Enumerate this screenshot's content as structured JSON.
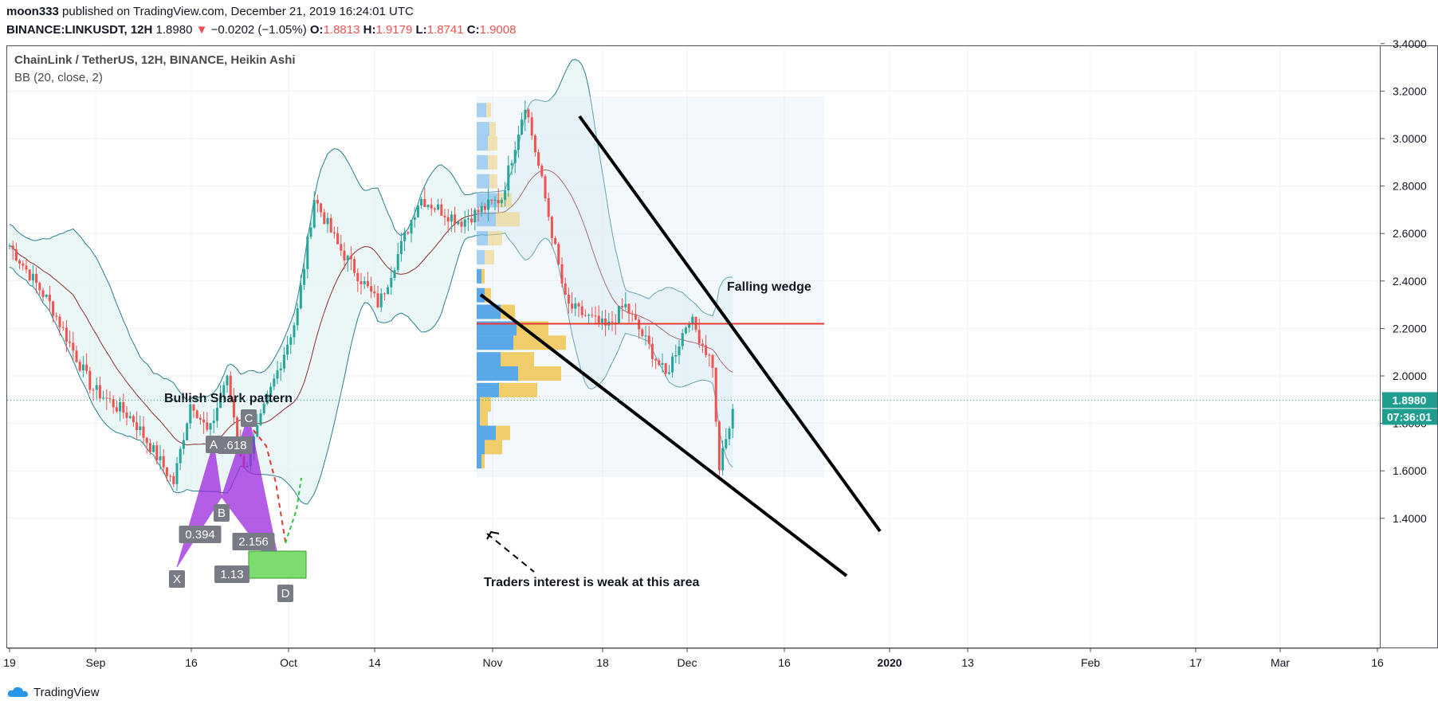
{
  "header": {
    "user": "moon333",
    "published": "published on TradingView.com, December 21, 2019 16:24:01 UTC",
    "symbol": "BINANCE:LINKUSDT, 12H",
    "last": "1.8980",
    "arrow": "▼",
    "change": "−0.0202 (−1.05%)",
    "o_label": "O:",
    "o": "1.8813",
    "h_label": "H:",
    "h": "1.9179",
    "l_label": "L:",
    "l": "1.8741",
    "c_label": "C:",
    "c": "1.9008"
  },
  "legend": {
    "title": "ChainLink / TetherUS, 12H, BINANCE, Heikin Ashi",
    "indicator": "BB (20, close, 2)"
  },
  "footer": {
    "brand": "TradingView"
  },
  "price_badge": {
    "price": "1.8980",
    "countdown": "07:36:01"
  },
  "annotations": {
    "pattern": "Bullish Shark pattern",
    "wedge": "Falling wedge",
    "traders": "Traders interest is weak at this area",
    "points": [
      "X",
      "A",
      "B",
      "C",
      "D"
    ],
    "ratios": [
      ".618",
      "0.394",
      "2.156",
      "1.13"
    ]
  },
  "colors": {
    "up": "#26a69a",
    "down": "#ef5350",
    "bb": "#2a7f8a",
    "bbfill": "#e6f4f5",
    "basis": "#8b2e2e",
    "vp_up": "#5aa8e8",
    "vp_down": "#f0cc6a",
    "harmonic": "#9c27e0",
    "target": "#7ddc6f",
    "resistance": "#e53935",
    "badge": "#1f9e8f"
  },
  "chart_data": {
    "type": "candlestick",
    "symbol": "BINANCE:LINKUSDT",
    "timeframe": "12H",
    "y_ticks": [
      "3.4000",
      "3.2000",
      "3.0000",
      "2.8000",
      "2.6000",
      "2.4000",
      "2.2000",
      "2.0000",
      "1.8000",
      "1.6000",
      "1.4000"
    ],
    "x_ticks": [
      "19",
      "Sep",
      "16",
      "Oct",
      "14",
      "Nov",
      "18",
      "Dec",
      "16",
      "2020",
      "13",
      "Feb",
      "17",
      "Mar",
      "16"
    ],
    "ylim": [
      1.22,
      3.42
    ],
    "price_path": [
      [
        "Aug 19",
        2.55
      ],
      [
        "Aug 26",
        2.3
      ],
      [
        "Sep 2",
        1.95
      ],
      [
        "Sep 9",
        1.82
      ],
      [
        "Sep 16",
        1.55
      ],
      [
        "Sep 19",
        1.9
      ],
      [
        "Sep 22",
        1.75
      ],
      [
        "Sep 25",
        2.0
      ],
      [
        "Sep 28",
        1.6
      ],
      [
        "Oct 2",
        1.9
      ],
      [
        "Oct 7",
        2.25
      ],
      [
        "Oct 10",
        2.75
      ],
      [
        "Oct 14",
        2.55
      ],
      [
        "Oct 21",
        2.3
      ],
      [
        "Oct 28",
        2.75
      ],
      [
        "Nov 4",
        2.65
      ],
      [
        "Nov 11",
        2.75
      ],
      [
        "Nov 15",
        3.15
      ],
      [
        "Nov 18",
        2.8
      ],
      [
        "Nov 22",
        2.3
      ],
      [
        "Nov 29",
        2.2
      ],
      [
        "Dec 2",
        2.3
      ],
      [
        "Dec 9",
        2.0
      ],
      [
        "Dec 13",
        2.25
      ],
      [
        "Dec 17",
        2.05
      ],
      [
        "Dec 18",
        1.6
      ],
      [
        "Dec 21",
        1.898
      ]
    ],
    "last_price": 1.898,
    "resistance_level": 2.22,
    "volume_profile_rows": [
      {
        "price": 3.12,
        "up": 12,
        "down": 6
      },
      {
        "price": 3.04,
        "up": 16,
        "down": 8
      },
      {
        "price": 2.98,
        "up": 14,
        "down": 12
      },
      {
        "price": 2.9,
        "up": 14,
        "down": 12
      },
      {
        "price": 2.82,
        "up": 16,
        "down": 10
      },
      {
        "price": 2.74,
        "up": 26,
        "down": 18
      },
      {
        "price": 2.66,
        "up": 24,
        "down": 30
      },
      {
        "price": 2.58,
        "up": 14,
        "down": 18
      },
      {
        "price": 2.5,
        "up": 10,
        "down": 12
      },
      {
        "price": 2.42,
        "up": 6,
        "down": 4
      },
      {
        "price": 2.34,
        "up": 10,
        "down": 8
      },
      {
        "price": 2.27,
        "up": 30,
        "down": 18
      },
      {
        "price": 2.2,
        "up": 50,
        "down": 40
      },
      {
        "price": 2.14,
        "up": 46,
        "down": 66
      },
      {
        "price": 2.07,
        "up": 30,
        "down": 42
      },
      {
        "price": 2.01,
        "up": 52,
        "down": 54
      },
      {
        "price": 1.94,
        "up": 28,
        "down": 48
      },
      {
        "price": 1.88,
        "up": 4,
        "down": 14
      },
      {
        "price": 1.82,
        "up": 4,
        "down": 10
      },
      {
        "price": 1.76,
        "up": 24,
        "down": 18
      },
      {
        "price": 1.7,
        "up": 10,
        "down": 22
      },
      {
        "price": 1.64,
        "up": 6,
        "down": 4
      }
    ]
  }
}
